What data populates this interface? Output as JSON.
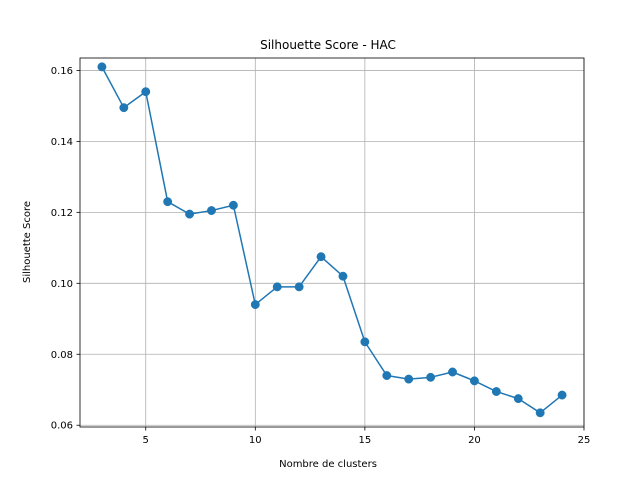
{
  "chart_data": {
    "type": "line",
    "title": "Silhouette Score - HAC",
    "xlabel": "Nombre de clusters",
    "ylabel": "Silhouette Score",
    "xlim": [
      2,
      25
    ],
    "ylim": [
      0.0595,
      0.1635
    ],
    "x_ticks": [
      5,
      10,
      15,
      20,
      25
    ],
    "x_tick_labels": [
      "5",
      "10",
      "15",
      "20",
      "25"
    ],
    "y_ticks": [
      0.06,
      0.08,
      0.1,
      0.12,
      0.14,
      0.16
    ],
    "y_tick_labels": [
      "0.06",
      "0.08",
      "0.10",
      "0.12",
      "0.14",
      "0.16"
    ],
    "grid": true,
    "legend": "none",
    "series": [
      {
        "color": "#1f77b4",
        "marker": "circle",
        "x": [
          3,
          4,
          5,
          6,
          7,
          8,
          9,
          10,
          11,
          12,
          13,
          14,
          15,
          16,
          17,
          18,
          19,
          20,
          21,
          22,
          23,
          24
        ],
        "y": [
          0.161,
          0.1495,
          0.154,
          0.123,
          0.1195,
          0.1205,
          0.122,
          0.094,
          0.099,
          0.099,
          0.1075,
          0.102,
          0.0835,
          0.074,
          0.073,
          0.0735,
          0.075,
          0.0725,
          0.0695,
          0.0675,
          0.0635,
          0.0685
        ]
      }
    ]
  }
}
